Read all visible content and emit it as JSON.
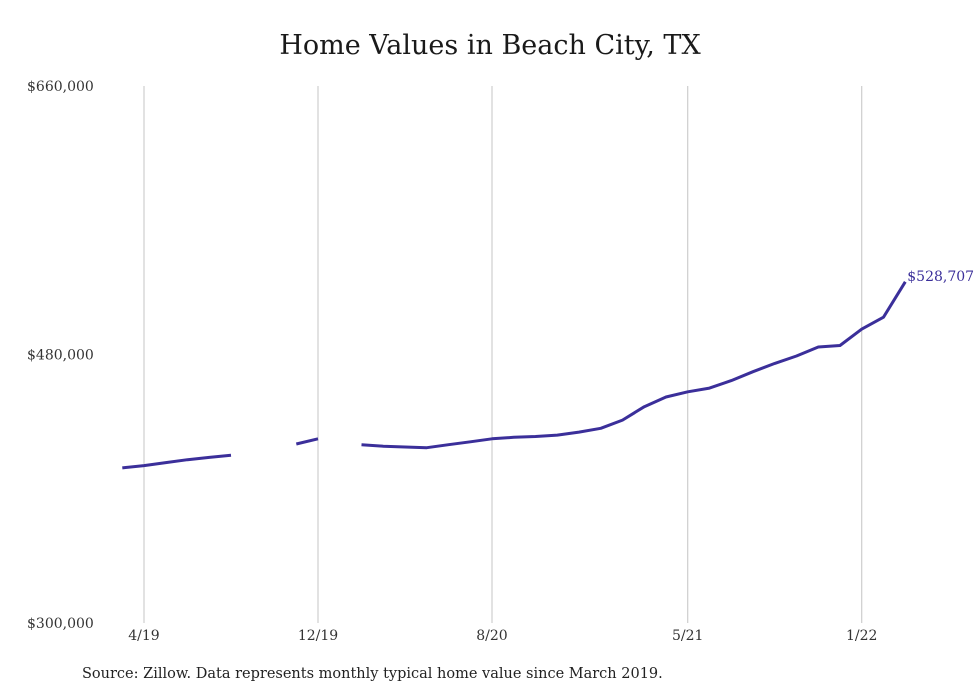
{
  "chart_data": {
    "type": "line",
    "title": "Home Values in Beach City, TX",
    "xlabel": "",
    "ylabel": "",
    "ylim": [
      300000,
      660000
    ],
    "y_ticks": [
      "$660,000",
      "$480,000",
      "$300,000"
    ],
    "y_tick_values": [
      660000,
      480000,
      300000
    ],
    "x_ticks": [
      {
        "label": "4/19",
        "date": "2019-04"
      },
      {
        "label": "12/19",
        "date": "2019-12"
      },
      {
        "label": "8/20",
        "date": "2020-08"
      },
      {
        "label": "5/21",
        "date": "2021-05"
      },
      {
        "label": "1/22",
        "date": "2022-01"
      }
    ],
    "grid": "vertical",
    "line_color": "#3b2f9a",
    "series": [
      {
        "points": [
          {
            "x": "2019-03",
            "y": 404000
          },
          {
            "x": "2019-04",
            "y": 405500
          },
          {
            "x": "2019-05",
            "y": 407500
          },
          {
            "x": "2019-06",
            "y": 409500
          },
          {
            "x": "2019-07",
            "y": 411000
          },
          {
            "x": "2019-08",
            "y": 412500
          },
          {
            "x": "2019-09",
            "y": null
          },
          {
            "x": "2019-10",
            "y": null
          },
          {
            "x": "2019-11",
            "y": 420000
          },
          {
            "x": "2019-12",
            "y": 423500
          },
          {
            "x": "2020-01",
            "y": null
          },
          {
            "x": "2020-02",
            "y": 419500
          },
          {
            "x": "2020-03",
            "y": 418500
          },
          {
            "x": "2020-04",
            "y": 418000
          },
          {
            "x": "2020-05",
            "y": 417500
          },
          {
            "x": "2020-06",
            "y": 419500
          },
          {
            "x": "2020-07",
            "y": 421500
          },
          {
            "x": "2020-08",
            "y": 423500
          },
          {
            "x": "2020-09",
            "y": 424500
          },
          {
            "x": "2020-10",
            "y": 425000
          },
          {
            "x": "2020-11",
            "y": 426000
          },
          {
            "x": "2020-12",
            "y": 428000
          },
          {
            "x": "2021-01",
            "y": 430500
          },
          {
            "x": "2021-02",
            "y": 436000
          },
          {
            "x": "2021-03",
            "y": 445000
          },
          {
            "x": "2021-04",
            "y": 451500
          },
          {
            "x": "2021-05",
            "y": 455000
          },
          {
            "x": "2021-06",
            "y": 457500
          },
          {
            "x": "2021-07",
            "y": 462500
          },
          {
            "x": "2021-08",
            "y": 468500
          },
          {
            "x": "2021-09",
            "y": 474000
          },
          {
            "x": "2021-10",
            "y": 479000
          },
          {
            "x": "2021-11",
            "y": 485000
          },
          {
            "x": "2021-12",
            "y": 486000
          },
          {
            "x": "2022-01",
            "y": 497000
          },
          {
            "x": "2022-02",
            "y": 505000
          },
          {
            "x": "2022-03",
            "y": 528707
          }
        ]
      }
    ],
    "end_label": "$528,707"
  },
  "source_note": "Source: Zillow. Data represents monthly typical home value since March 2019."
}
